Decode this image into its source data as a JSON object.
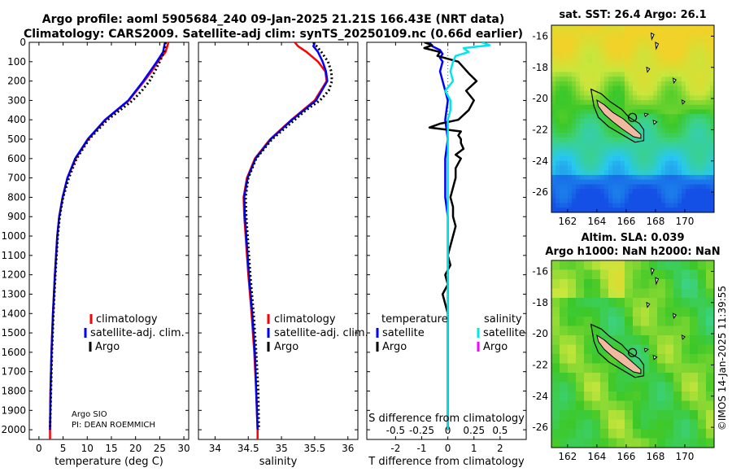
{
  "header": {
    "title_line1": "Argo profile: aoml 5905684_240 09-Jan-2025 21.21S 166.43E (NRT data)",
    "title_line2": "Climatology: CARS2009. Satellite-adj clim: synTS_20250109.nc (0.66d earlier)"
  },
  "credit": {
    "line1": "Argo SIO",
    "line2": "PI: DEAN ROEMMICH",
    "imos": "©IMOS 14-Jan-2025 11:39:55"
  },
  "colors": {
    "climatology": "#ff0000",
    "satellite": "#0000ff",
    "argo": "#000000",
    "sat_salinity": "#00e5ee",
    "argo_salinity": "#ff00ff",
    "land": "#f0b9a0"
  },
  "chart_data": [
    {
      "type": "line",
      "name": "temperature-profile",
      "xlabel": "temperature (deg C)",
      "xlim": [
        -2,
        31
      ],
      "xticks": [
        0,
        5,
        10,
        15,
        20,
        25,
        30
      ],
      "ylim": [
        0,
        2050
      ],
      "yticks": [
        0,
        100,
        200,
        300,
        400,
        500,
        600,
        700,
        800,
        900,
        1000,
        1100,
        1200,
        1300,
        1400,
        1500,
        1600,
        1700,
        1800,
        1900,
        2000
      ],
      "legend": [
        "climatology",
        "satellite-adj. clim.",
        "Argo"
      ],
      "series": [
        {
          "name": "climatology",
          "color": "#ff0000",
          "style": "solid",
          "depth": [
            0,
            50,
            100,
            150,
            200,
            300,
            400,
            500,
            600,
            700,
            800,
            900,
            1000,
            1200,
            1400,
            1600,
            1800,
            2000,
            2050
          ],
          "values": [
            26.8,
            26.2,
            24.6,
            23.3,
            21.8,
            18.6,
            13.8,
            10.2,
            7.6,
            5.9,
            4.9,
            4.2,
            3.8,
            3.3,
            2.9,
            2.6,
            2.4,
            2.3,
            2.3
          ]
        },
        {
          "name": "satellite-adj. clim.",
          "color": "#0000ff",
          "style": "solid",
          "depth": [
            0,
            50,
            100,
            150,
            200,
            300,
            400,
            500,
            600,
            700,
            800,
            900,
            1000,
            1200,
            1400,
            1600,
            1800,
            2000
          ],
          "values": [
            26.1,
            25.7,
            24.4,
            23.0,
            21.6,
            18.5,
            13.7,
            10.1,
            7.5,
            5.9,
            4.9,
            4.2,
            3.8,
            3.3,
            2.9,
            2.6,
            2.4,
            2.3
          ]
        },
        {
          "name": "Argo",
          "color": "#000000",
          "style": "dotted",
          "depth": [
            0,
            50,
            100,
            150,
            200,
            250,
            300,
            350,
            400,
            500,
            600,
            700,
            800,
            900,
            1000,
            1200,
            1400,
            1600,
            1800,
            2000
          ],
          "values": [
            26.2,
            25.9,
            25.0,
            24.0,
            22.9,
            21.3,
            19.4,
            16.8,
            14.2,
            10.4,
            7.8,
            6.2,
            5.0,
            4.3,
            3.9,
            3.4,
            3.0,
            2.7,
            2.5,
            2.3
          ]
        }
      ]
    },
    {
      "type": "line",
      "name": "salinity-profile",
      "xlabel": "salinity",
      "xlim": [
        33.75,
        36.15
      ],
      "xticks": [
        34,
        34.5,
        35,
        35.5,
        36
      ],
      "ylim": [
        0,
        2050
      ],
      "legend": [
        "climatology",
        "satellite-adj. clim.",
        "Argo"
      ],
      "series": [
        {
          "name": "climatology",
          "color": "#ff0000",
          "style": "solid",
          "depth": [
            0,
            20,
            50,
            100,
            150,
            200,
            300,
            400,
            500,
            600,
            700,
            800,
            900,
            1000,
            1200,
            1400,
            1600,
            1800,
            2000,
            2050
          ],
          "values": [
            35.2,
            35.25,
            35.38,
            35.55,
            35.66,
            35.68,
            35.5,
            35.15,
            34.83,
            34.6,
            34.48,
            34.43,
            34.44,
            34.46,
            34.5,
            34.55,
            34.59,
            34.62,
            34.64,
            34.64
          ]
        },
        {
          "name": "satellite-adj. clim.",
          "color": "#0000ff",
          "style": "solid",
          "depth": [
            0,
            20,
            50,
            100,
            150,
            200,
            300,
            400,
            500,
            600,
            700,
            800,
            900,
            1000,
            1200,
            1400,
            1600,
            1800,
            2000
          ],
          "values": [
            35.5,
            35.48,
            35.55,
            35.62,
            35.67,
            35.69,
            35.52,
            35.16,
            34.84,
            34.61,
            34.49,
            34.44,
            34.45,
            34.47,
            34.51,
            34.56,
            34.6,
            34.62,
            34.64
          ]
        },
        {
          "name": "Argo",
          "color": "#000000",
          "style": "dotted",
          "depth": [
            0,
            50,
            100,
            150,
            200,
            250,
            300,
            350,
            400,
            500,
            600,
            700,
            800,
            900,
            1000,
            1200,
            1400,
            1600,
            1800,
            2000
          ],
          "values": [
            35.48,
            35.6,
            35.7,
            35.75,
            35.76,
            35.71,
            35.58,
            35.37,
            35.2,
            34.86,
            34.62,
            34.5,
            34.46,
            34.47,
            34.49,
            34.53,
            34.58,
            34.62,
            34.65,
            34.66
          ]
        }
      ]
    },
    {
      "type": "line",
      "name": "difference-profile",
      "xlabel": "T difference from climatology",
      "xlabel_top": "S difference from climatology",
      "xlim": [
        -3.1,
        3.0
      ],
      "xticks": [
        -2,
        -1,
        0,
        1,
        2
      ],
      "s_ticks": [
        "-0.5",
        "-0.25",
        "0",
        "0.25",
        "0.5"
      ],
      "s_tick_positions": [
        -2,
        -1,
        0,
        1,
        2
      ],
      "ylim": [
        0,
        2050
      ],
      "legend_t_title": "temperature",
      "legend_s_title": "salinity",
      "legend_labels": [
        "satellite",
        "Argo"
      ],
      "series": [
        {
          "name": "T satellite",
          "color": "#0000ff",
          "style": "solid",
          "depth": [
            0,
            20,
            40,
            60,
            80,
            100,
            150,
            200,
            300,
            400,
            500,
            600,
            700,
            800,
            900,
            1000,
            1200,
            1400,
            1600,
            1800,
            2000
          ],
          "values": [
            -0.7,
            -0.6,
            -0.3,
            -0.2,
            -0.3,
            -0.2,
            -0.3,
            -0.2,
            0.0,
            -0.1,
            0.0,
            -0.1,
            -0.1,
            -0.1,
            0.0,
            0.0,
            0.0,
            0.0,
            0.0,
            0.0,
            0.0
          ]
        },
        {
          "name": "T Argo",
          "color": "#000000",
          "style": "solid",
          "depth": [
            0,
            15,
            30,
            50,
            70,
            100,
            130,
            160,
            200,
            250,
            300,
            350,
            400,
            420,
            440,
            460,
            480,
            500,
            520,
            550,
            580,
            600,
            650,
            700,
            750,
            800,
            850,
            900,
            950,
            1000,
            1100,
            1150,
            1200,
            1250,
            1300,
            1400,
            1600,
            1800,
            2000
          ],
          "values": [
            -0.9,
            -0.6,
            -0.9,
            -0.3,
            -0.4,
            0.4,
            0.6,
            0.8,
            1.1,
            0.7,
            1.0,
            0.8,
            0.4,
            -0.3,
            -0.7,
            0.5,
            0.4,
            0.5,
            0.5,
            0.6,
            0.3,
            0.5,
            0.3,
            0.3,
            0.2,
            0.1,
            0.2,
            0.2,
            0.3,
            0.2,
            0.0,
            0.1,
            -0.1,
            0.0,
            -0.2,
            0.0,
            0.0,
            0.0,
            0.0
          ]
        },
        {
          "name": "S satellite",
          "color": "#00e5ee",
          "style": "solid",
          "depth": [
            0,
            15,
            30,
            50,
            70,
            100,
            150,
            200,
            250,
            300,
            350,
            400,
            500,
            600,
            700,
            800,
            900,
            1000,
            1200,
            1400,
            1600,
            1800,
            2000
          ],
          "values": [
            1.3,
            1.6,
            0.6,
            0.8,
            0.3,
            0.2,
            0.1,
            0.2,
            -0.1,
            0.1,
            0.1,
            0.0,
            0.0,
            0.0,
            0.0,
            0.0,
            0.0,
            0.0,
            0.0,
            0.0,
            0.0,
            0.0,
            0.0
          ]
        }
      ]
    }
  ],
  "maps": [
    {
      "name": "sst-map",
      "title": "sat. SST: 26.4 Argo: 26.1",
      "xticks": [
        "162",
        "164",
        "166",
        "168",
        "170"
      ],
      "yticks": [
        "-16",
        "-18",
        "-20",
        "-22",
        "-24",
        "-26"
      ]
    },
    {
      "name": "sla-map",
      "title_line1": "Altim. SLA: 0.039",
      "title_line2": "Argo h1000: NaN h2000: NaN",
      "xticks": [
        "162",
        "164",
        "166",
        "168",
        "170"
      ],
      "yticks": [
        "-16",
        "-18",
        "-20",
        "-22",
        "-24",
        "-26"
      ]
    }
  ]
}
